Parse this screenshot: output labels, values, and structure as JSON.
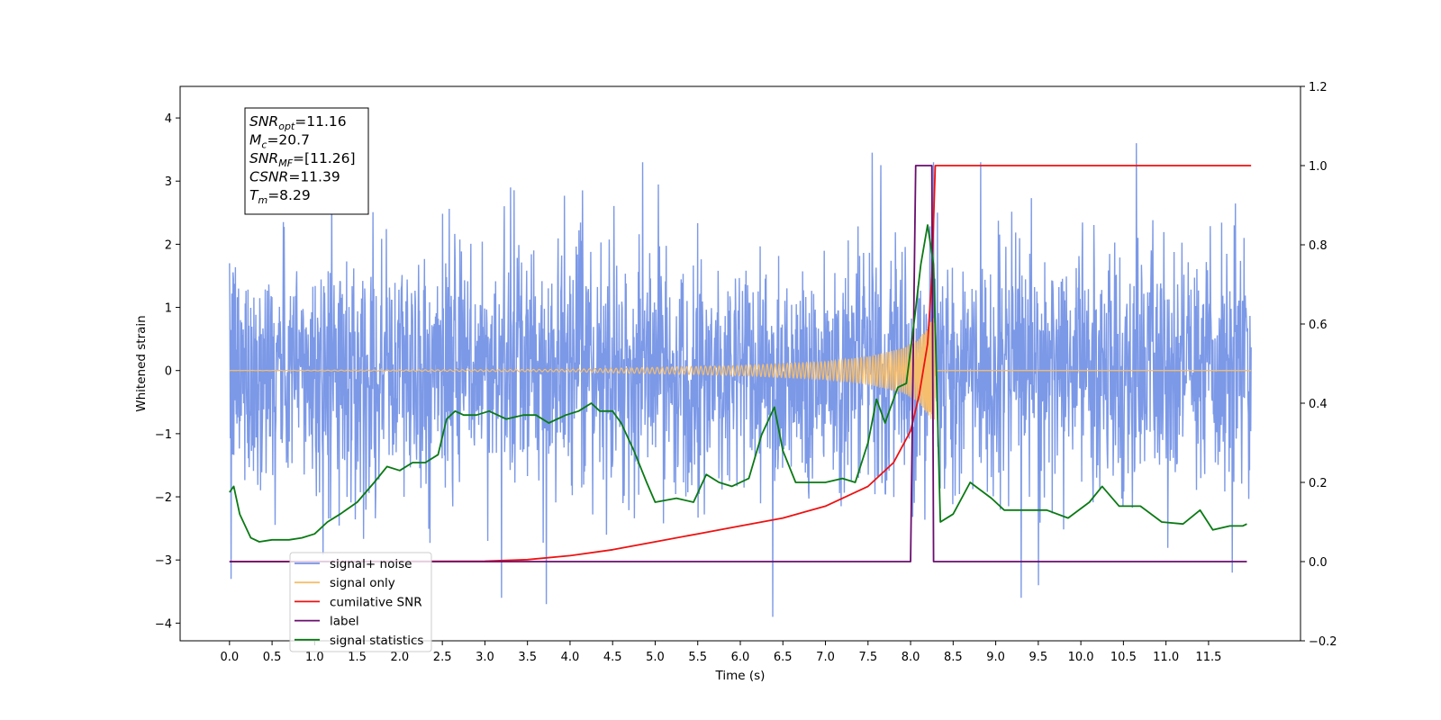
{
  "chart_data": {
    "type": "line",
    "title": "",
    "xlabel": "Time (s)",
    "ylabel_left": "Whitened strain",
    "ylabel_right": "",
    "xlim": [
      -0.58,
      12.58
    ],
    "ylim_left": [
      -4.28,
      4.5
    ],
    "ylim_right": [
      -0.2,
      1.2
    ],
    "x_ticks": [
      0.0,
      0.5,
      1.0,
      1.5,
      2.0,
      2.5,
      3.0,
      3.5,
      4.0,
      4.5,
      5.0,
      5.5,
      6.0,
      6.5,
      7.0,
      7.5,
      8.0,
      8.5,
      9.0,
      9.5,
      10.0,
      10.5,
      11.0,
      11.5
    ],
    "x_tick_labels": [
      "0.0",
      "0.5",
      "1.0",
      "1.5",
      "2.0",
      "2.5",
      "3.0",
      "3.5",
      "4.0",
      "4.5",
      "5.0",
      "5.5",
      "6.0",
      "6.5",
      "7.0",
      "7.5",
      "8.0",
      "8.5",
      "9.0",
      "9.5",
      "10.0",
      "10.5",
      "11.0",
      "11.5"
    ],
    "y_ticks_left": [
      -4,
      -3,
      -2,
      -1,
      0,
      1,
      2,
      3,
      4
    ],
    "y_tick_labels_left": [
      "−4",
      "−3",
      "−2",
      "−1",
      "0",
      "1",
      "2",
      "3",
      "4"
    ],
    "y_ticks_right": [
      -0.2,
      0.0,
      0.2,
      0.4,
      0.6,
      0.8,
      1.0,
      1.2
    ],
    "y_tick_labels_right": [
      "−0.2",
      "0.0",
      "0.2",
      "0.4",
      "0.6",
      "0.8",
      "1.0",
      "1.2"
    ],
    "grid": false,
    "legend": {
      "placement": "lower-left",
      "entries": [
        {
          "label": "signal+ noise",
          "color": "#7593e6"
        },
        {
          "label": "signal only",
          "color": "#f5be6e"
        },
        {
          "label": "cumilative SNR",
          "color": "#ee1111"
        },
        {
          "label": "label",
          "color": "#6a0d6e"
        },
        {
          "label": "signal statistics",
          "color": "#0a7a14"
        }
      ]
    },
    "annotation": {
      "lines": [
        {
          "main": "SNR",
          "sub": "opt",
          "rest": "=11.16"
        },
        {
          "main": "M",
          "sub": "c",
          "rest": "=20.7"
        },
        {
          "main": "SNR",
          "sub": "MF",
          "rest": "=[11.26]"
        },
        {
          "main": "CSNR",
          "sub": "",
          "rest": "=11.39"
        },
        {
          "main": "T",
          "sub": "m",
          "rest": "=8.29"
        }
      ]
    },
    "series": [
      {
        "name": "signal+ noise",
        "axis": "left",
        "color": "#7593e6",
        "style": "noise",
        "x_range": [
          0.0,
          12.0
        ],
        "approx_std": 0.95,
        "approx_peaks_max": [
          [
            0.0,
            1.7
          ],
          [
            1.2,
            2.9
          ],
          [
            3.3,
            2.9
          ],
          [
            7.55,
            3.45
          ],
          [
            8.25,
            3.2
          ],
          [
            10.65,
            3.6
          ],
          [
            11.8,
            2.3
          ]
        ],
        "approx_peaks_min": [
          [
            0.02,
            -3.3
          ],
          [
            3.72,
            -3.7
          ],
          [
            6.38,
            -3.9
          ],
          [
            9.5,
            -3.4
          ],
          [
            11.78,
            -3.2
          ]
        ]
      },
      {
        "name": "signal only",
        "axis": "left",
        "color": "#f5be6e",
        "style": "chirp",
        "merger_time": 8.29,
        "envelope": [
          [
            0.0,
            0.0
          ],
          [
            4.0,
            0.02
          ],
          [
            5.0,
            0.05
          ],
          [
            6.0,
            0.08
          ],
          [
            7.0,
            0.14
          ],
          [
            7.5,
            0.22
          ],
          [
            7.9,
            0.35
          ],
          [
            8.1,
            0.5
          ],
          [
            8.2,
            0.7
          ],
          [
            8.28,
            0.9
          ],
          [
            8.29,
            0.0
          ],
          [
            12.0,
            0.0
          ]
        ]
      },
      {
        "name": "cumilative SNR",
        "axis": "right",
        "color": "#ee1111",
        "x": [
          0.0,
          3.0,
          3.5,
          4.0,
          4.5,
          5.0,
          5.5,
          6.0,
          6.5,
          7.0,
          7.5,
          7.8,
          8.0,
          8.1,
          8.2,
          8.25,
          8.29,
          8.3,
          12.0
        ],
        "y": [
          0.0,
          0.001,
          0.005,
          0.015,
          0.03,
          0.05,
          0.07,
          0.09,
          0.11,
          0.14,
          0.19,
          0.25,
          0.33,
          0.42,
          0.55,
          0.72,
          1.0,
          1.0,
          1.0
        ]
      },
      {
        "name": "label",
        "axis": "right",
        "color": "#6a0d6e",
        "x": [
          0.0,
          8.0,
          8.06,
          8.25,
          8.27,
          8.3,
          11.95
        ],
        "y": [
          0.0,
          0.0,
          1.0,
          1.0,
          0.0,
          0.0,
          0.0
        ]
      },
      {
        "name": "signal statistics",
        "axis": "right",
        "color": "#0a7a14",
        "x": [
          0.0,
          0.05,
          0.12,
          0.25,
          0.35,
          0.5,
          0.7,
          0.85,
          1.0,
          1.15,
          1.3,
          1.5,
          1.7,
          1.85,
          2.0,
          2.15,
          2.3,
          2.45,
          2.55,
          2.65,
          2.75,
          2.9,
          3.05,
          3.25,
          3.45,
          3.6,
          3.75,
          3.95,
          4.1,
          4.25,
          4.35,
          4.5,
          4.6,
          4.75,
          4.9,
          5.0,
          5.25,
          5.45,
          5.6,
          5.75,
          5.9,
          6.1,
          6.25,
          6.4,
          6.5,
          6.65,
          6.8,
          7.0,
          7.2,
          7.35,
          7.5,
          7.6,
          7.7,
          7.85,
          7.95,
          8.05,
          8.12,
          8.2,
          8.27,
          8.35,
          8.5,
          8.7,
          8.95,
          9.1,
          9.35,
          9.6,
          9.85,
          10.1,
          10.25,
          10.45,
          10.7,
          10.95,
          11.2,
          11.4,
          11.55,
          11.75,
          11.9,
          11.95
        ],
        "y": [
          0.175,
          0.19,
          0.12,
          0.06,
          0.05,
          0.055,
          0.055,
          0.06,
          0.07,
          0.1,
          0.12,
          0.15,
          0.2,
          0.24,
          0.23,
          0.25,
          0.25,
          0.27,
          0.36,
          0.38,
          0.37,
          0.37,
          0.38,
          0.36,
          0.37,
          0.37,
          0.35,
          0.37,
          0.38,
          0.4,
          0.38,
          0.38,
          0.35,
          0.28,
          0.2,
          0.15,
          0.16,
          0.15,
          0.22,
          0.2,
          0.19,
          0.21,
          0.32,
          0.39,
          0.28,
          0.2,
          0.2,
          0.2,
          0.21,
          0.2,
          0.3,
          0.41,
          0.35,
          0.44,
          0.45,
          0.62,
          0.75,
          0.85,
          0.75,
          0.1,
          0.12,
          0.2,
          0.16,
          0.13,
          0.13,
          0.13,
          0.11,
          0.15,
          0.19,
          0.14,
          0.14,
          0.1,
          0.095,
          0.13,
          0.08,
          0.09,
          0.09,
          0.095
        ]
      }
    ]
  }
}
